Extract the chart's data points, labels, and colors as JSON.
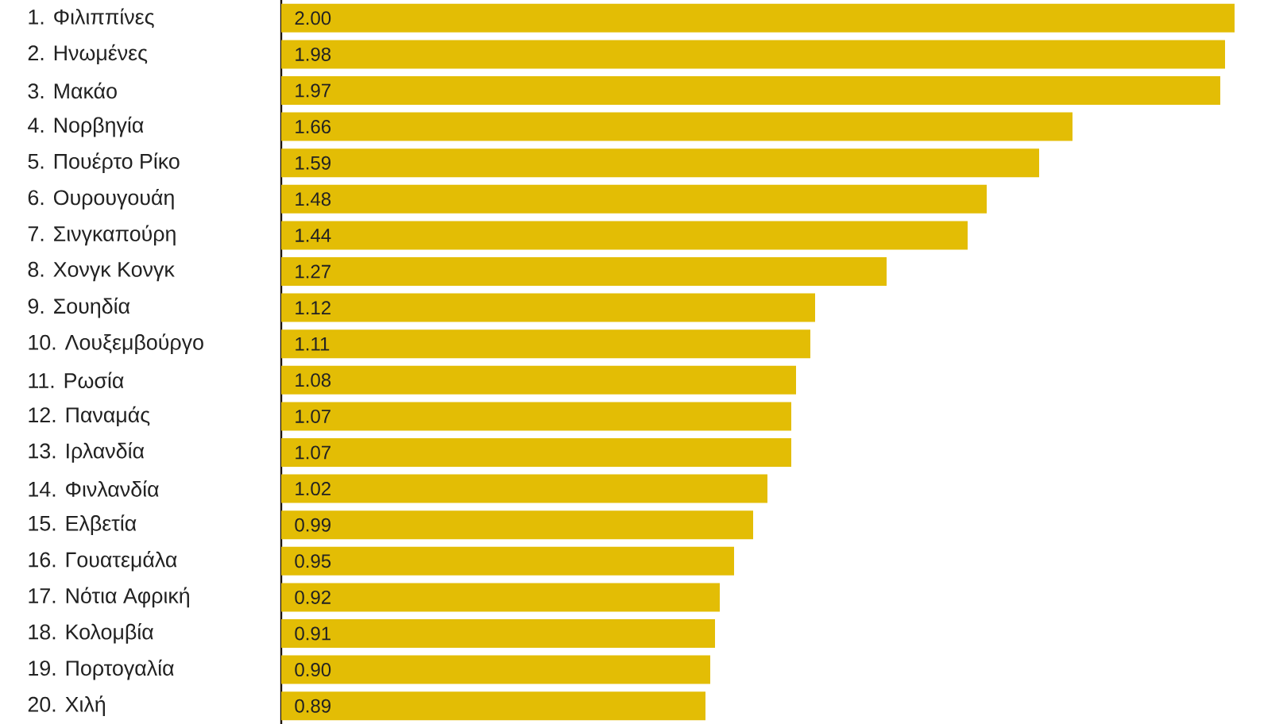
{
  "chart_data": {
    "type": "bar",
    "orientation": "horizontal",
    "categories": [
      "1. Φιλιππίνες",
      "2. Ηνωμένες",
      "3. Μακάο",
      "4. Νορβηγία",
      "5. Πουέρτο Ρίκο",
      "6. Ουρουγουάη",
      "7. Σινγκαπούρη",
      "8. Χονγκ Κονγκ",
      "9. Σουηδία",
      "10. Λουξεμβούργο",
      "11. Ρωσία",
      "12. Παναμάς",
      "13. Ιρλανδία",
      "14. Φινλανδία",
      "15. Ελβετία",
      "16. Γουατεμάλα",
      "17. Νότια Αφρική",
      "18. Κολομβία",
      "19. Πορτογαλία",
      "20. Χιλή"
    ],
    "values": [
      2.0,
      1.98,
      1.97,
      1.66,
      1.59,
      1.48,
      1.44,
      1.27,
      1.12,
      1.11,
      1.08,
      1.07,
      1.07,
      1.02,
      0.99,
      0.95,
      0.92,
      0.91,
      0.9,
      0.89
    ],
    "value_labels": [
      "2.00",
      "1.98",
      "1.97",
      "1.66",
      "1.59",
      "1.48",
      "1.44",
      "1.27",
      "1.12",
      "1.11",
      "1.08",
      "1.07",
      "1.07",
      "1.02",
      "0.99",
      "0.95",
      "0.92",
      "0.91",
      "0.90",
      "0.89"
    ],
    "color": "#e3bd05"
  }
}
